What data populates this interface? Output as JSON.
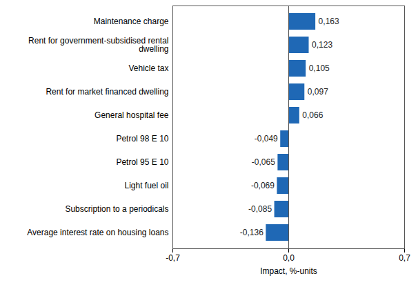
{
  "chart_data": {
    "type": "bar",
    "orientation": "horizontal",
    "categories": [
      "Maintenance charge",
      "Rent for government-subsidised rental dwelling",
      "Vehicle tax",
      "Rent for market financed dwelling",
      "General hospital fee",
      "Petrol 98 E 10",
      "Petrol 95 E 10",
      "Light fuel oil",
      "Subscription to a periodicals",
      "Average interest rate on housing loans"
    ],
    "values": [
      0.163,
      0.123,
      0.105,
      0.097,
      0.066,
      -0.049,
      -0.065,
      -0.069,
      -0.085,
      -0.136
    ],
    "value_labels": [
      "0,163",
      "0,123",
      "0,105",
      "0,097",
      "0,066",
      "-0,049",
      "-0,065",
      "-0,069",
      "-0,085",
      "-0,136"
    ],
    "data_labels": true,
    "color": "#1f68b5",
    "xlabel": "Impact, %-units",
    "xlim": [
      -0.7,
      0.7
    ],
    "xticks": [
      {
        "value": -0.7,
        "label": "-0,7"
      },
      {
        "value": 0,
        "label": "0,0"
      },
      {
        "value": 0.7,
        "label": "0,7"
      }
    ],
    "grid": true
  }
}
